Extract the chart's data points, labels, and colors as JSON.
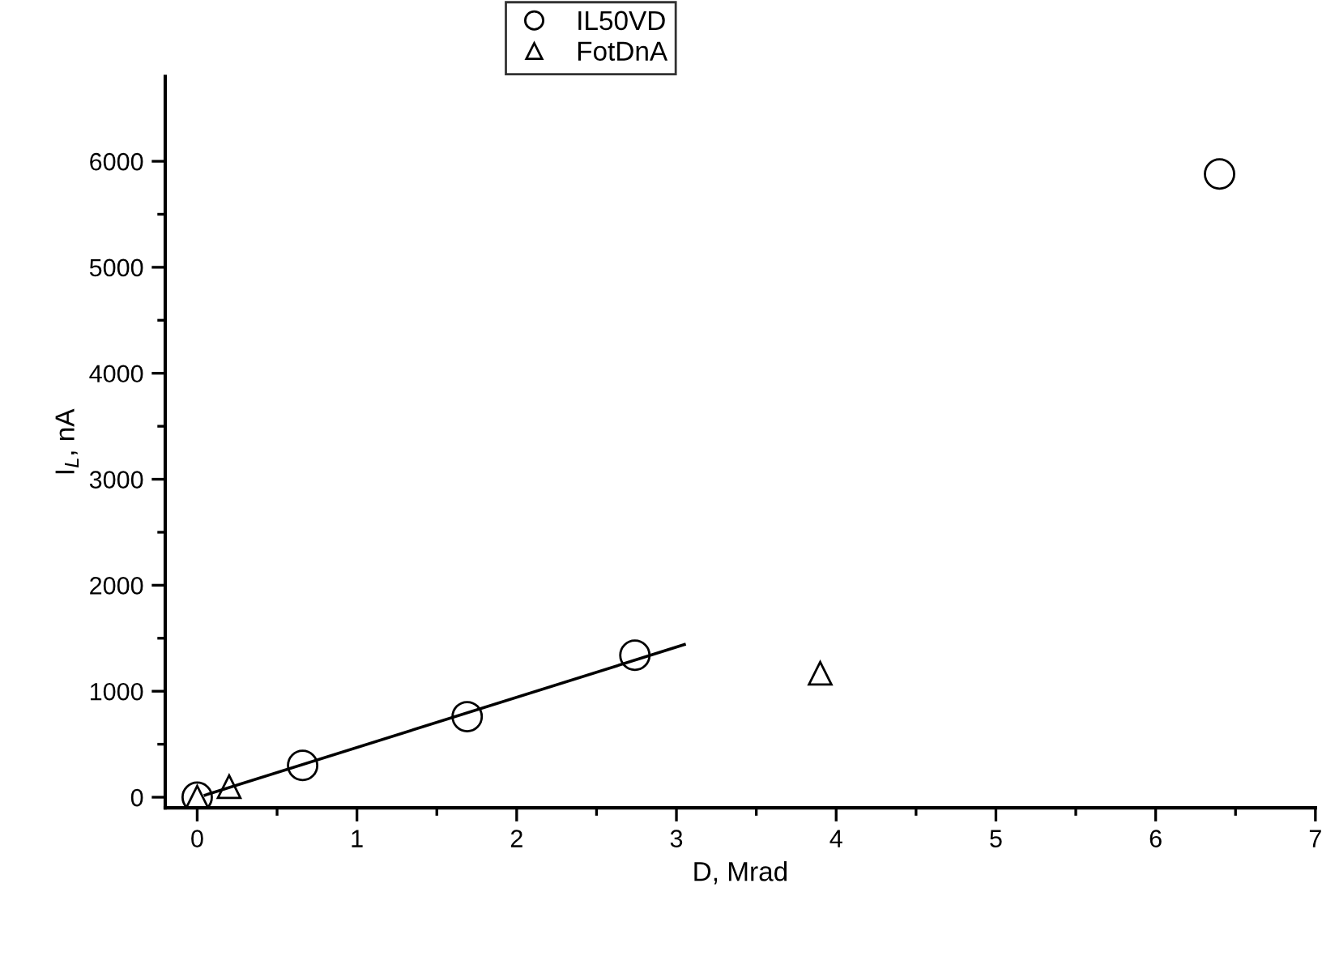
{
  "chart_data": {
    "type": "scatter",
    "xlabel": "D, Mrad",
    "ylabel": "I$_{L}$, nA",
    "xlim": [
      -0.2,
      7
    ],
    "xticks": [
      0,
      1,
      2,
      3,
      4,
      5,
      6,
      7
    ],
    "ylim": [
      -100,
      6800
    ],
    "yticks": [
      0,
      1000,
      2000,
      3000,
      4000,
      5000,
      6000
    ],
    "grid": false,
    "legend": "top",
    "series": [
      {
        "name": "IL50VD",
        "color": "#000000",
        "marker": "circle",
        "x": [
          0,
          0.66,
          1.69,
          2.74,
          6.4
        ],
        "values": [
          0,
          300,
          760,
          1340,
          5880
        ]
      },
      {
        "name": "FotDnA",
        "color": "#000000",
        "marker": "triangle",
        "x": [
          0,
          0.2,
          3.9
        ],
        "values": [
          0,
          100,
          1170
        ]
      },
      {
        "type": "line",
        "color": "#000000",
        "marker": "none",
        "x": [
          0.05,
          3.05
        ],
        "values": [
          20,
          1440
        ]
      }
    ]
  }
}
